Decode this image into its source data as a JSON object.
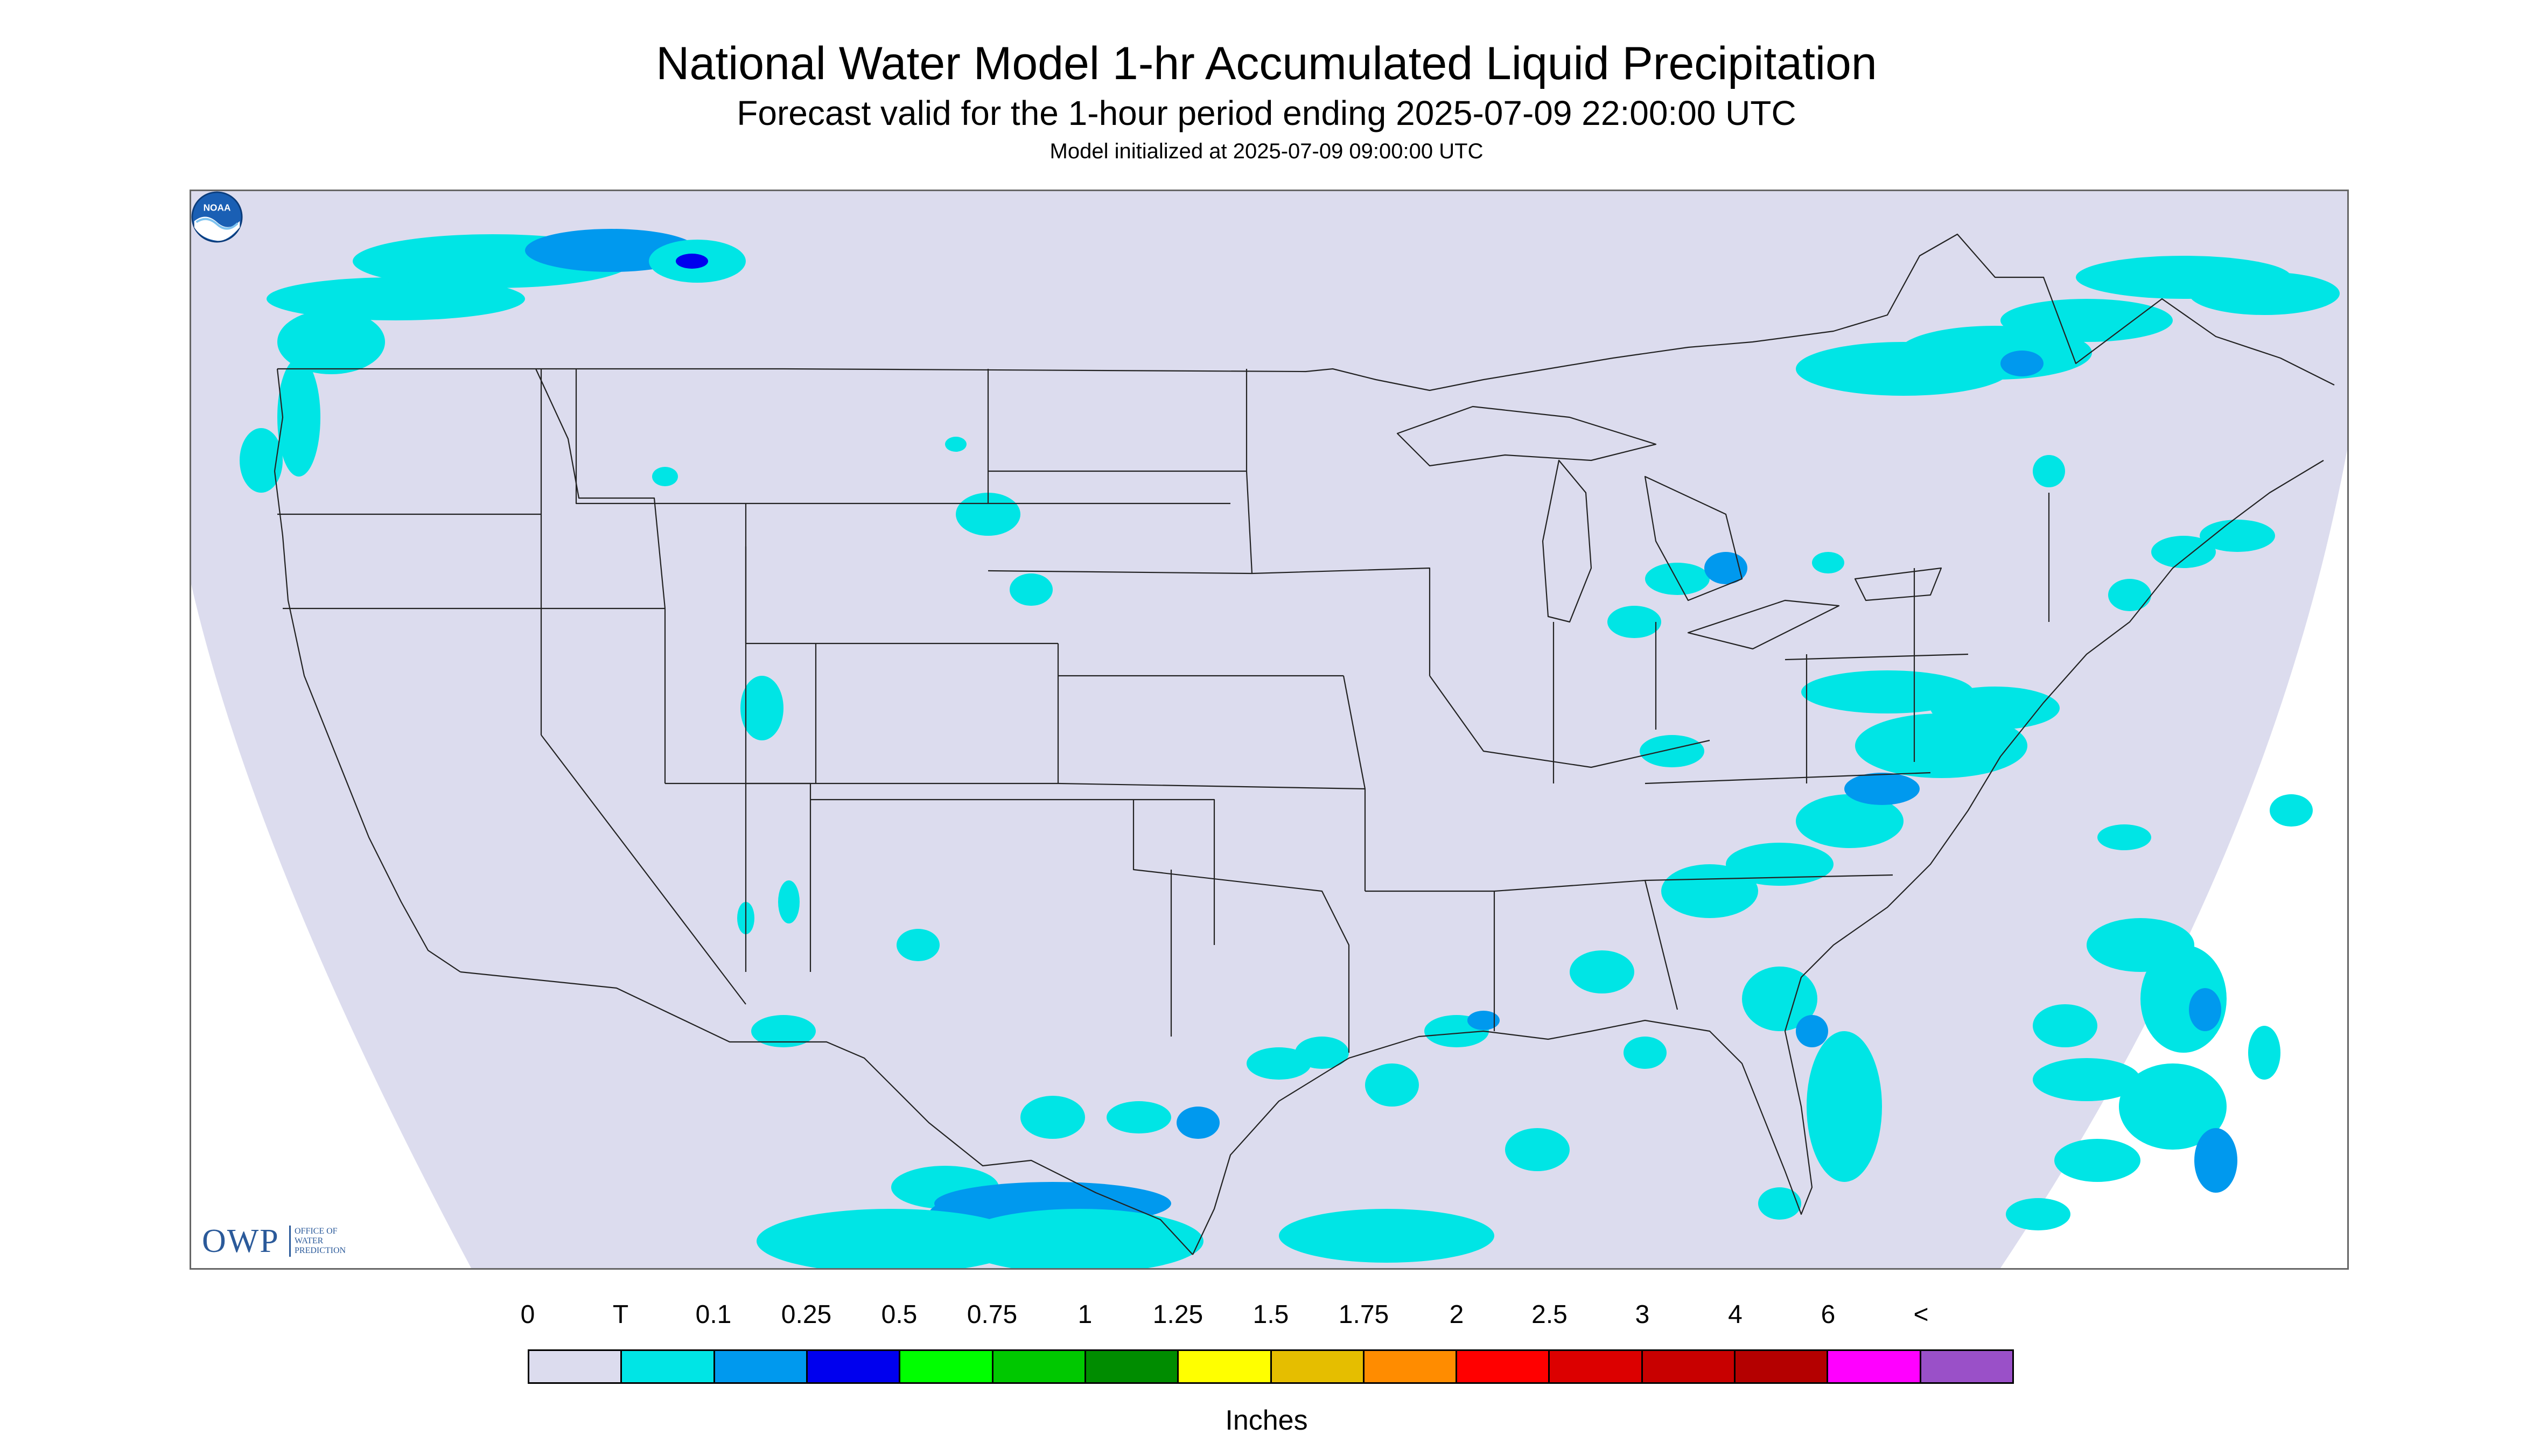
{
  "header": {
    "title": "National Water Model 1-hr Accumulated Liquid Precipitation",
    "subtitle": "Forecast valid for the 1-hour period ending 2025-07-09 22:00:00 UTC",
    "init": "Model initialized at 2025-07-09 09:00:00 UTC"
  },
  "map": {
    "region": "CONUS",
    "background_color": "#dcdcee",
    "outside_color": "#ffffff",
    "boundary_color": "#222222"
  },
  "logos": {
    "owp": {
      "letters": "OWP",
      "office_text": "OFFICE OF\nWATER\nPREDICTION"
    },
    "noaa": {
      "letters": "NOAA"
    }
  },
  "legend": {
    "labels": [
      "0",
      "T",
      "0.1",
      "0.25",
      "0.5",
      "0.75",
      "1",
      "1.25",
      "1.5",
      "1.75",
      "2",
      "2.5",
      "3",
      "4",
      "6",
      "<"
    ],
    "colors": [
      "#dcdcee",
      "#00e5e5",
      "#0099ee",
      "#0000ee",
      "#00ff00",
      "#00c800",
      "#008c00",
      "#ffff00",
      "#e5be00",
      "#ff8c00",
      "#ff0000",
      "#dc0000",
      "#c80000",
      "#b40000",
      "#ff00ff",
      "#9a50c8"
    ],
    "units": "Inches"
  }
}
